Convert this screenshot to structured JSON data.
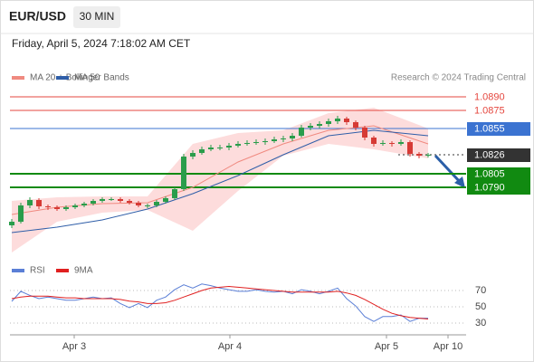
{
  "header": {
    "symbol": "EUR/USD",
    "timeframe": "30 MIN",
    "timestamp": "Friday, April 5, 2024 7:18:02 AM CET"
  },
  "chart_data": [
    {
      "type": "candlestick",
      "credit": "Research © 2024 Trading Central",
      "xlim": [
        -0.2,
        50.2
      ],
      "xticks": [
        {
          "value": 6.9,
          "label": "Apr 3"
        },
        {
          "value": 24.1,
          "label": "Apr 4"
        },
        {
          "value": 41.4,
          "label": "Apr 5"
        },
        {
          "value": 48.2,
          "label": "Apr 10"
        }
      ],
      "ylim": [
        1.0714,
        1.0902
      ],
      "up_color": "#2a9d4b",
      "down_color": "#d63a35",
      "x": [
        0,
        1,
        2,
        3,
        4,
        5,
        6,
        7,
        8,
        9,
        10,
        11,
        12,
        13,
        14,
        15,
        16,
        17,
        18,
        19,
        20,
        21,
        22,
        23,
        24,
        25,
        26,
        27,
        28,
        29,
        30,
        31,
        32,
        33,
        34,
        35,
        36,
        37,
        38,
        39,
        40,
        41,
        42,
        43,
        44,
        45,
        46
      ],
      "open": [
        1.0748,
        1.0752,
        1.077,
        1.0776,
        1.0769,
        1.0768,
        1.0766,
        1.0768,
        1.077,
        1.0772,
        1.0775,
        1.0777,
        1.0777,
        1.0775,
        1.0773,
        1.077,
        1.077,
        1.0774,
        1.0778,
        1.0788,
        1.0824,
        1.0828,
        1.0832,
        1.0834,
        1.0834,
        1.0836,
        1.0838,
        1.0839,
        1.084,
        1.0841,
        1.0843,
        1.0844,
        1.0847,
        1.0856,
        1.0858,
        1.086,
        1.0863,
        1.0866,
        1.0862,
        1.0856,
        1.0845,
        1.0838,
        1.0839,
        1.0838,
        1.084,
        1.0827,
        1.0825
      ],
      "high": [
        1.0755,
        1.0773,
        1.0779,
        1.0778,
        1.0771,
        1.077,
        1.077,
        1.0772,
        1.0774,
        1.0777,
        1.0779,
        1.0779,
        1.0779,
        1.0777,
        1.0775,
        1.0772,
        1.0776,
        1.078,
        1.079,
        1.0827,
        1.0831,
        1.0835,
        1.0837,
        1.0837,
        1.0839,
        1.0841,
        1.0842,
        1.0843,
        1.0844,
        1.0846,
        1.0847,
        1.085,
        1.0859,
        1.0861,
        1.0863,
        1.0866,
        1.0869,
        1.0868,
        1.0864,
        1.0858,
        1.0847,
        1.0842,
        1.0841,
        1.0843,
        1.0842,
        1.0829,
        1.0828
      ],
      "low": [
        1.0745,
        1.075,
        1.0767,
        1.0766,
        1.0765,
        1.0764,
        1.0764,
        1.0766,
        1.0768,
        1.077,
        1.0773,
        1.0775,
        1.0773,
        1.0771,
        1.0768,
        1.0767,
        1.0768,
        1.0772,
        1.0776,
        1.0786,
        1.0821,
        1.0826,
        1.083,
        1.0831,
        1.0831,
        1.0834,
        1.0836,
        1.0837,
        1.0837,
        1.0839,
        1.084,
        1.0841,
        1.0845,
        1.0853,
        1.0855,
        1.0857,
        1.086,
        1.0859,
        1.0853,
        1.0842,
        1.0835,
        1.0836,
        1.0835,
        1.0836,
        1.0824,
        1.0822,
        1.0823
      ],
      "close": [
        1.0752,
        1.077,
        1.0776,
        1.0769,
        1.0768,
        1.0766,
        1.0768,
        1.077,
        1.0772,
        1.0775,
        1.0777,
        1.0777,
        1.0775,
        1.0773,
        1.077,
        1.077,
        1.0774,
        1.0778,
        1.0788,
        1.0824,
        1.0828,
        1.0832,
        1.0834,
        1.0834,
        1.0836,
        1.0838,
        1.0839,
        1.084,
        1.0841,
        1.0843,
        1.0844,
        1.0847,
        1.0856,
        1.0858,
        1.086,
        1.0863,
        1.0866,
        1.0862,
        1.0856,
        1.0845,
        1.0838,
        1.0839,
        1.0838,
        1.084,
        1.0827,
        1.0825,
        1.0826
      ],
      "series": [
        {
          "name": "MA 20 + Bollinger Bands",
          "color": "#f08a80",
          "band_color": "#fddcdc",
          "x": [
            0,
            5,
            10,
            15,
            20,
            25,
            30,
            35,
            40,
            46
          ],
          "values": [
            1.076,
            1.0768,
            1.0772,
            1.0773,
            1.079,
            1.0818,
            1.0838,
            1.0853,
            1.0858,
            1.0838
          ],
          "upper": [
            1.0775,
            1.0779,
            1.078,
            1.078,
            1.0838,
            1.085,
            1.0853,
            1.0872,
            1.0878,
            1.0855
          ],
          "lower": [
            1.0718,
            1.0752,
            1.0762,
            1.0765,
            1.0742,
            1.0786,
            1.0825,
            1.0838,
            1.0832,
            1.0822
          ]
        },
        {
          "name": "MA 50",
          "color": "#2f5ea8",
          "x": [
            0,
            5,
            10,
            15,
            20,
            25,
            30,
            35,
            40,
            46
          ],
          "values": [
            1.074,
            1.0746,
            1.0754,
            1.0766,
            1.0783,
            1.0803,
            1.0826,
            1.0847,
            1.0853,
            1.0847
          ]
        }
      ],
      "levels": [
        {
          "value": 1.089,
          "label": "1.0890",
          "color": "#e5473f",
          "style": "text"
        },
        {
          "value": 1.0875,
          "label": "1.0875",
          "color": "#e5473f",
          "style": "text"
        },
        {
          "value": 1.0855,
          "label": "1.0855",
          "color": "#3b73d1",
          "style": "box"
        },
        {
          "value": 1.0826,
          "label": "1.0826",
          "color": "#333333",
          "style": "box",
          "dash": true
        },
        {
          "value": 1.0805,
          "label": "1.0805",
          "color": "#118a11",
          "style": "box",
          "width": 2
        },
        {
          "value": 1.079,
          "label": "1.0790",
          "color": "#118a11",
          "style": "box",
          "width": 2
        }
      ]
    },
    {
      "type": "line",
      "xlim": [
        -0.2,
        50.2
      ],
      "ylim": [
        17.8,
        87.8
      ],
      "yticks": [
        70,
        50,
        30
      ],
      "grid": true,
      "x": [
        0,
        1,
        2,
        3,
        4,
        5,
        6,
        7,
        8,
        9,
        10,
        11,
        12,
        13,
        14,
        15,
        16,
        17,
        18,
        19,
        20,
        21,
        22,
        23,
        24,
        25,
        26,
        27,
        28,
        29,
        30,
        31,
        32,
        33,
        34,
        35,
        36,
        37,
        38,
        39,
        40,
        41,
        42,
        43,
        44,
        45,
        46
      ],
      "series": [
        {
          "name": "RSI",
          "color": "#5b7fd6",
          "values": [
            56.7,
            69,
            64,
            60,
            62,
            60,
            58,
            58,
            60,
            62,
            60,
            61,
            54,
            49,
            54,
            49,
            58,
            62,
            71,
            77,
            73,
            78,
            76,
            73,
            71,
            69,
            69,
            71,
            69,
            68,
            69,
            66,
            71,
            69,
            66,
            69,
            73,
            60,
            51,
            38,
            32,
            38,
            38,
            40,
            32,
            36,
            36
          ]
        },
        {
          "name": "9MA",
          "color": "#e02020",
          "values": [
            60,
            62,
            63,
            63,
            63,
            62,
            61,
            61,
            60,
            60,
            60,
            60,
            59,
            57,
            56,
            54,
            54,
            55,
            58,
            62,
            66,
            70,
            73,
            74,
            75,
            74,
            73,
            72,
            71,
            70,
            69,
            68,
            68,
            68,
            68,
            68,
            69,
            67,
            64,
            59,
            53,
            47,
            42,
            39,
            37,
            36,
            35
          ]
        }
      ]
    }
  ]
}
